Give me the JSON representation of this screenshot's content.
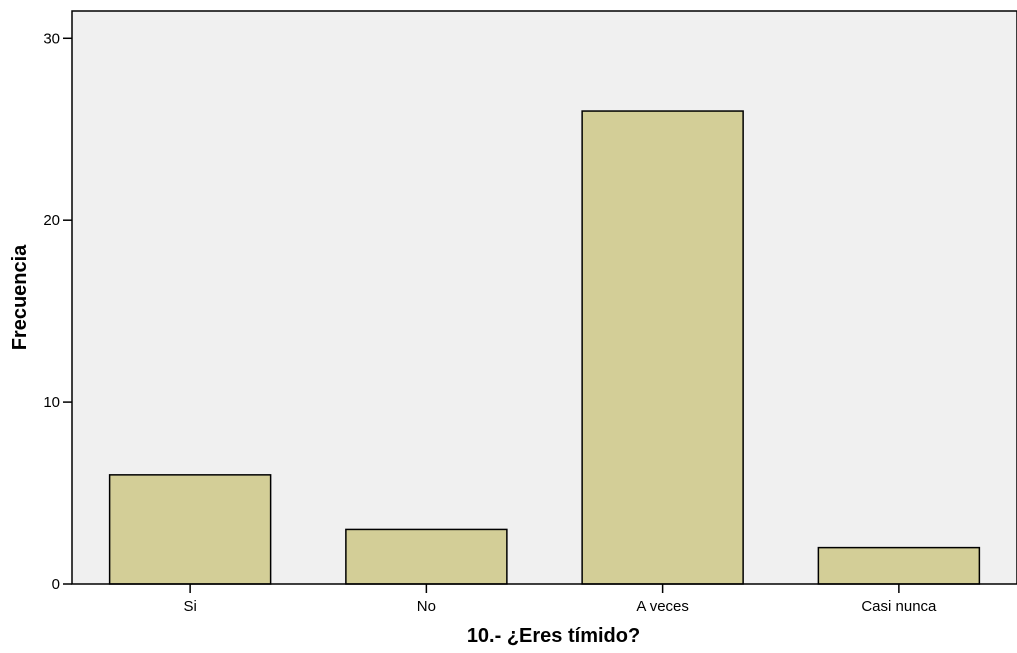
{
  "chart_data": {
    "type": "bar",
    "title": "",
    "xlabel": "10.- ¿Eres tímido?",
    "ylabel": "Frecuencia",
    "categories": [
      "Si",
      "No",
      "A veces",
      "Casi nunca"
    ],
    "values": [
      6,
      3,
      26,
      2
    ],
    "ylim": [
      0,
      31.5
    ],
    "yticks": [
      0,
      10,
      20,
      30
    ],
    "grid": false,
    "legend": "none",
    "colors": {
      "plot_background": "#f0f0f0",
      "bar_fill": "#d3ce97",
      "bar_stroke": "#000000",
      "axis": "#000000"
    }
  }
}
